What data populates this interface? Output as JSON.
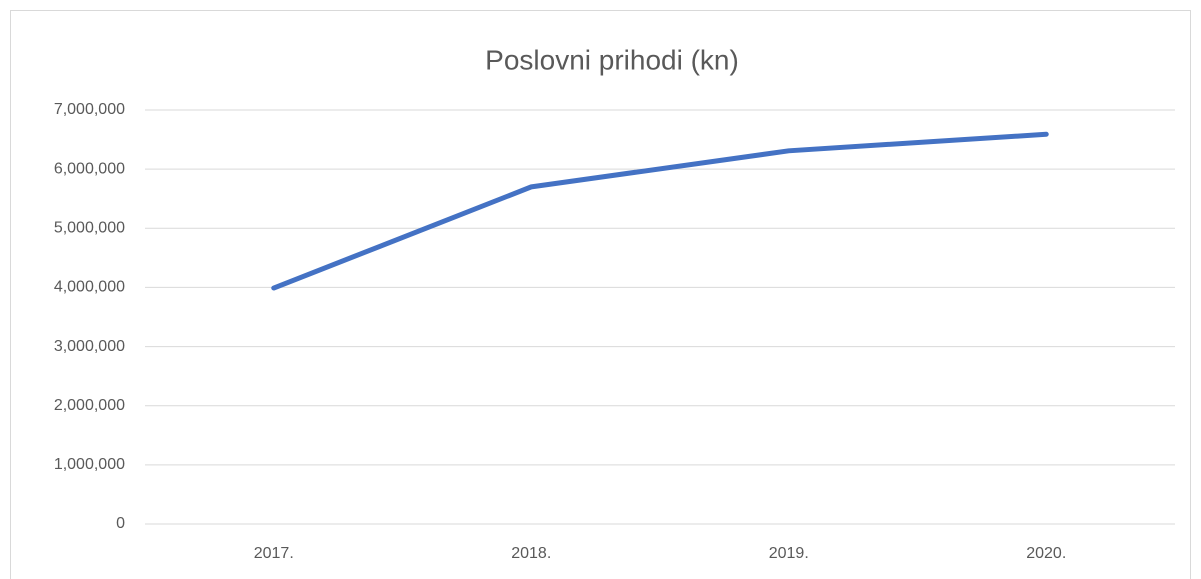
{
  "chart_data": {
    "type": "line",
    "title": "Poslovni prihodi (kn)",
    "categories": [
      "2017.",
      "2018.",
      "2019.",
      "2020."
    ],
    "series": [
      {
        "name": "Poslovni prihodi",
        "color": "#4472c4",
        "values": [
          3990000,
          5700000,
          6310000,
          6590000
        ]
      }
    ],
    "ylim": [
      0,
      7000000
    ],
    "yticks": [
      0,
      {
        "value": 1000000,
        "label": "1,000,000"
      },
      {
        "value": 2000000,
        "label": "2,000,000"
      },
      {
        "value": 3000000,
        "label": "3,000,000"
      },
      {
        "value": 4000000,
        "label": "4,000,000"
      },
      {
        "value": 5000000,
        "label": "5,000,000"
      },
      {
        "value": 6000000,
        "label": "6,000,000"
      },
      {
        "value": 7000000,
        "label": "7,000,000"
      }
    ],
    "grid": true
  }
}
